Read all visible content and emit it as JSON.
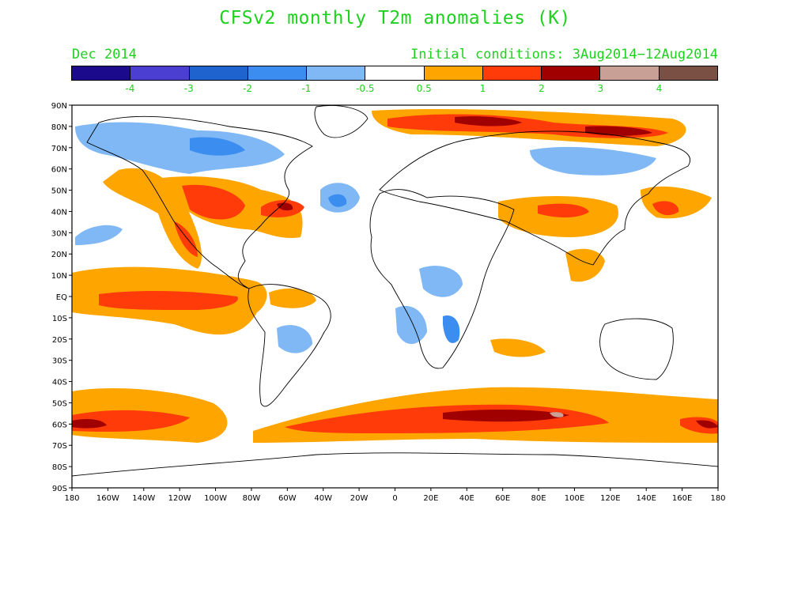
{
  "title": "CFSv2 monthly T2m anomalies (K)",
  "valid_month": "Dec 2014",
  "initial_conditions": "Initial conditions: 3Aug2014−12Aug2014",
  "legend": {
    "colors": [
      "#1c0a8c",
      "#4a3fd0",
      "#1f63cf",
      "#3b8ef0",
      "#7fb8f5",
      "#ffffff",
      "#ffa500",
      "#ff3b0a",
      "#a00000",
      "#c9a096",
      "#7a5044"
    ],
    "labels": [
      "-4",
      "-3",
      "-2",
      "-1",
      "-0.5",
      "0.5",
      "1",
      "2",
      "3",
      "4"
    ]
  },
  "axes": {
    "lat_labels": [
      "90N",
      "80N",
      "70N",
      "60N",
      "50N",
      "40N",
      "30N",
      "20N",
      "10N",
      "EQ",
      "10S",
      "20S",
      "30S",
      "40S",
      "50S",
      "60S",
      "70S",
      "80S",
      "90S"
    ],
    "lon_labels": [
      "180",
      "160W",
      "140W",
      "120W",
      "100W",
      "80W",
      "60W",
      "40W",
      "20W",
      "0",
      "20E",
      "40E",
      "60E",
      "80E",
      "100E",
      "120E",
      "140E",
      "160E",
      "180"
    ]
  }
}
